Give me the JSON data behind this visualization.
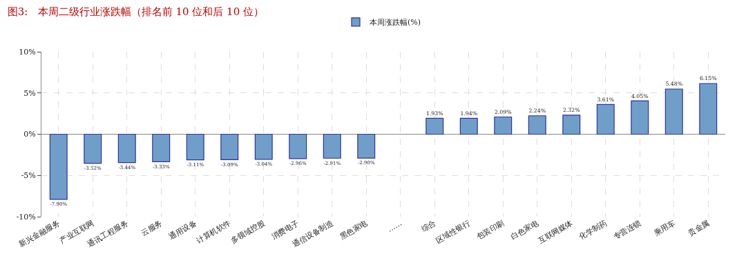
{
  "chart_data": {
    "type": "bar",
    "title": "图3:   本周二级行业涨跌幅（排名前 10 位和后 10 位）",
    "categories": [
      "新兴金融服务",
      "产业互联网",
      "通讯工程服务",
      "云服务",
      "通用设备",
      "计算机软件",
      "多领域控股",
      "消费电子",
      "通信设备制造",
      "黑色家电",
      "……",
      "综合",
      "区域性银行",
      "包装印刷",
      "白色家电",
      "互联网媒体",
      "化学制药",
      "专营连锁",
      "乘用车",
      "贵金属"
    ],
    "series": [
      {
        "name": "本周涨跌幅(%)",
        "color": "#6f9fc9",
        "values": [
          -7.9,
          -3.52,
          -3.44,
          -3.33,
          -3.11,
          -3.09,
          -3.04,
          -2.96,
          -2.91,
          -2.9,
          null,
          1.93,
          1.94,
          2.09,
          2.24,
          2.32,
          3.61,
          4.05,
          5.48,
          6.15
        ],
        "value_labels": [
          "-7.90%",
          "-3.52%",
          "-3.44%",
          "-3.33%",
          "-3.11%",
          "-3.09%",
          "-3.04%",
          "-2.96%",
          "-2.91%",
          "-2.90%",
          null,
          "1.93%",
          "1.94%",
          "2.09%",
          "2.24%",
          "2.32%",
          "3.61%",
          "4.05%",
          "5.48%",
          "6.15%"
        ]
      }
    ],
    "ylim": [
      -10,
      10
    ],
    "yticks": [
      {
        "value": -10,
        "label": "-10%"
      },
      {
        "value": -5,
        "label": "-5%"
      },
      {
        "value": 0,
        "label": "0%"
      },
      {
        "value": 5,
        "label": "5%"
      },
      {
        "value": 10,
        "label": "10%"
      }
    ],
    "grid": true,
    "legend": "top"
  }
}
